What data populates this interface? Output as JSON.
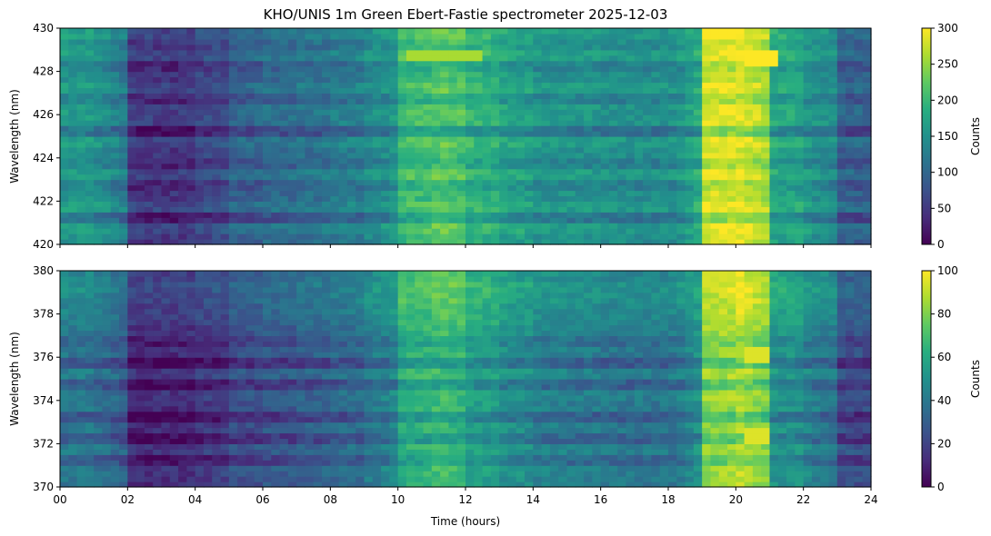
{
  "chart_data": [
    {
      "type": "heatmap",
      "title": "KHO/UNIS 1m Green Ebert-Fastie spectrometer 2025-12-03",
      "xlabel": "",
      "ylabel": "Wavelength (nm)",
      "xlim": [
        0,
        24
      ],
      "ylim": [
        420,
        430
      ],
      "x_ticks": [
        0,
        2,
        4,
        6,
        8,
        10,
        12,
        14,
        16,
        18,
        20,
        22,
        24
      ],
      "x_tick_labels": [],
      "y_ticks": [
        420,
        422,
        424,
        426,
        428,
        430
      ],
      "y_tick_labels": [
        "420",
        "422",
        "424",
        "426",
        "428",
        "430"
      ],
      "colormap": "viridis",
      "colorbar": {
        "label": "Counts",
        "range": [
          0,
          300
        ],
        "ticks": [
          0,
          50,
          100,
          150,
          200,
          250,
          300
        ],
        "tick_labels": [
          "0",
          "50",
          "100",
          "150",
          "200",
          "250",
          "300"
        ]
      },
      "brightness_by_hour": [
        0.52,
        0.5,
        0.16,
        0.14,
        0.2,
        0.3,
        0.34,
        0.36,
        0.4,
        0.45,
        0.66,
        0.72,
        0.63,
        0.56,
        0.5,
        0.5,
        0.48,
        0.48,
        0.46,
        0.92,
        0.96,
        0.58,
        0.52,
        0.3
      ],
      "bright_features": [
        {
          "wavelength": 428.7,
          "time_start": 10.3,
          "time_end": 12.6,
          "level": 260
        },
        {
          "wavelength": 428.6,
          "time_start": 20.3,
          "time_end": 21.2,
          "level": 300
        }
      ]
    },
    {
      "type": "heatmap",
      "title": "",
      "xlabel": "Time (hours)",
      "ylabel": "Wavelength (nm)",
      "xlim": [
        0,
        24
      ],
      "ylim": [
        370,
        380
      ],
      "x_ticks": [
        0,
        2,
        4,
        6,
        8,
        10,
        12,
        14,
        16,
        18,
        20,
        22,
        24
      ],
      "x_tick_labels": [
        "00",
        "02",
        "04",
        "06",
        "08",
        "10",
        "12",
        "14",
        "16",
        "18",
        "20",
        "22",
        "24"
      ],
      "y_ticks": [
        370,
        372,
        374,
        376,
        378,
        380
      ],
      "y_tick_labels": [
        "370",
        "372",
        "374",
        "376",
        "378",
        "380"
      ],
      "colormap": "viridis",
      "colorbar": {
        "label": "Counts",
        "range": [
          0,
          100
        ],
        "ticks": [
          0,
          20,
          40,
          60,
          80,
          100
        ],
        "tick_labels": [
          "0",
          "20",
          "40",
          "60",
          "80",
          "100"
        ]
      },
      "brightness_by_hour": [
        0.4,
        0.38,
        0.12,
        0.12,
        0.16,
        0.24,
        0.27,
        0.3,
        0.34,
        0.4,
        0.62,
        0.68,
        0.57,
        0.5,
        0.44,
        0.42,
        0.4,
        0.4,
        0.38,
        0.82,
        0.9,
        0.52,
        0.46,
        0.24
      ],
      "bright_features": [
        {
          "wavelength": 376.1,
          "time_start": 20.3,
          "time_end": 21.0,
          "level": 95
        },
        {
          "wavelength": 372.4,
          "time_start": 20.3,
          "time_end": 21.0,
          "level": 95
        }
      ]
    }
  ]
}
